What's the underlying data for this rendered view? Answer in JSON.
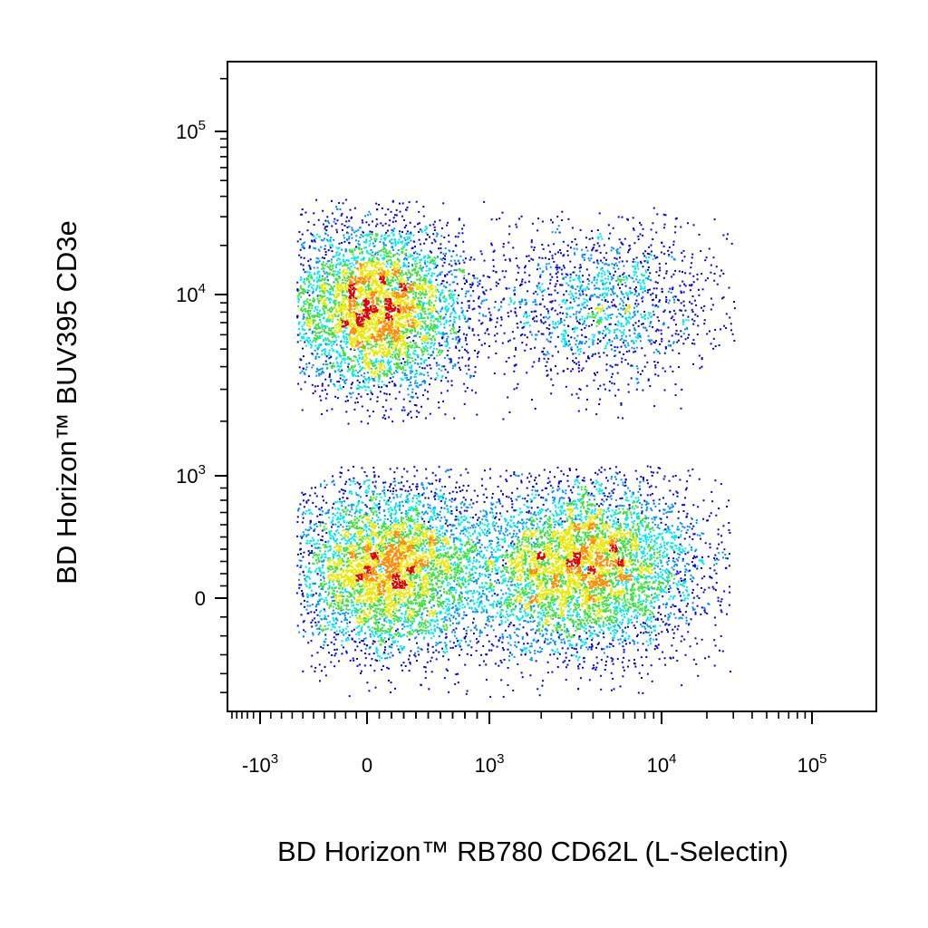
{
  "chart_data": {
    "type": "scatter",
    "subtype": "flow-cytometry-density-dot-plot",
    "xlabel": "BD Horizon™ RB780 CD62L (L-Selectin)",
    "ylabel": "BD Horizon™ BUV395 CD3e",
    "x_scale": "biexponential",
    "y_scale": "biexponential",
    "xlim": [
      -1600,
      200000
    ],
    "ylim": [
      -600,
      250000
    ],
    "grid": false,
    "legend": "none",
    "x_ticks": [
      {
        "base": "-10",
        "exp": "3",
        "value": -1000
      },
      {
        "base": "0",
        "exp": "",
        "value": 0
      },
      {
        "base": "10",
        "exp": "3",
        "value": 1000
      },
      {
        "base": "10",
        "exp": "4",
        "value": 10000
      },
      {
        "base": "10",
        "exp": "5",
        "value": 100000
      }
    ],
    "y_ticks": [
      {
        "base": "0",
        "exp": "",
        "value": 0
      },
      {
        "base": "10",
        "exp": "3",
        "value": 1000
      },
      {
        "base": "10",
        "exp": "4",
        "value": 10000
      },
      {
        "base": "10",
        "exp": "5",
        "value": 100000
      }
    ],
    "density_colors": [
      "#0000dd",
      "#0090ff",
      "#00e8e8",
      "#40e040",
      "#e8e800",
      "#ff8c00",
      "#e00000"
    ],
    "populations": [
      {
        "x_center": 60,
        "y_center": 8500,
        "x_range": [
          -450,
          1400
        ],
        "y_range": [
          2600,
          28000
        ],
        "relative_events": 0.24
      },
      {
        "x_center": 180,
        "y_center": 250,
        "x_range": [
          -450,
          1500
        ],
        "y_range": [
          -400,
          900
        ],
        "relative_events": 0.24
      },
      {
        "x_center": 3500,
        "y_center": 260,
        "x_range": [
          700,
          20000
        ],
        "y_range": [
          -400,
          900
        ],
        "relative_events": 0.28
      },
      {
        "x_center": 4500,
        "y_center": 9000,
        "x_range": [
          800,
          22000
        ],
        "y_range": [
          2500,
          25000
        ],
        "relative_events": 0.08
      }
    ]
  }
}
